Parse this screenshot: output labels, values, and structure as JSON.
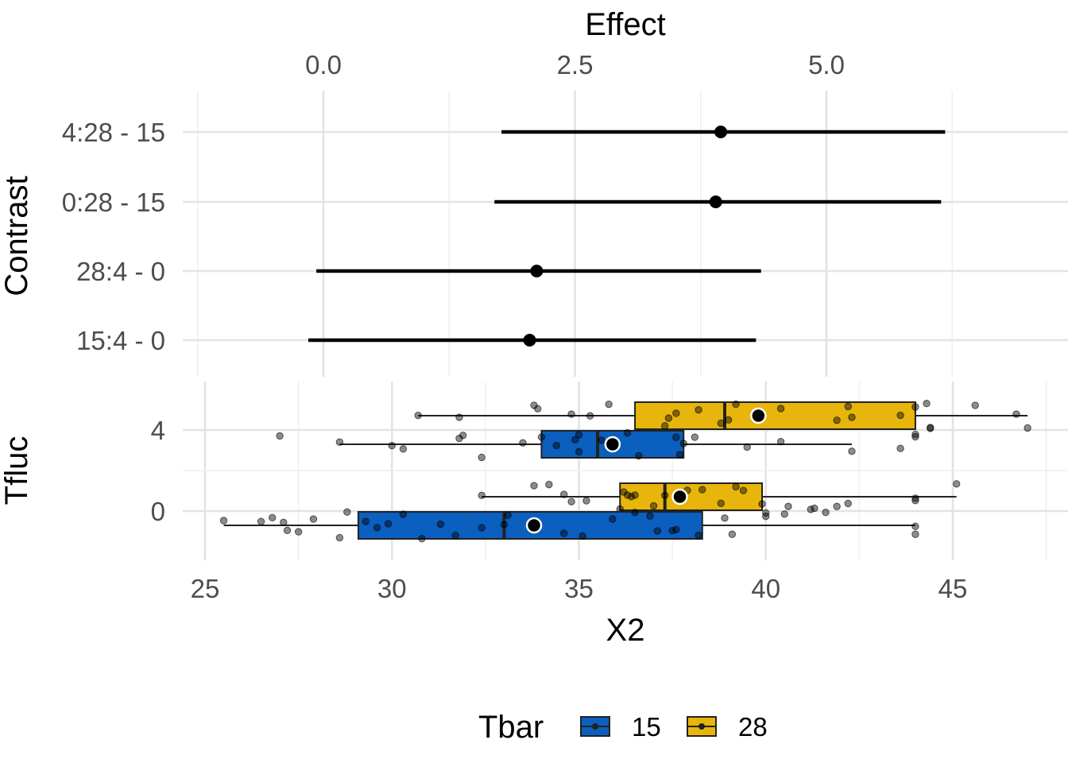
{
  "chart_data": [
    {
      "type": "forest",
      "title": "",
      "top_axis_title": "Effect",
      "y_axis_title": "Contrast",
      "x_ticks": [
        "0.0",
        "2.5",
        "5.0"
      ],
      "x_tick_values": [
        0,
        2.5,
        5
      ],
      "xlim": [
        -1.25,
        7.5
      ],
      "grid": true,
      "rows": [
        {
          "label": "4:28 - 15",
          "estimate": 3.95,
          "lower": 1.77,
          "upper": 6.18
        },
        {
          "label": "0:28 - 15",
          "estimate": 3.9,
          "lower": 1.7,
          "upper": 6.14
        },
        {
          "label": "28:4 - 0",
          "estimate": 2.12,
          "lower": -0.07,
          "upper": 4.35
        },
        {
          "label": "15:4 - 0",
          "estimate": 2.05,
          "lower": -0.15,
          "upper": 4.3
        }
      ]
    },
    {
      "type": "boxplot",
      "title": "",
      "x_axis_title": "X2",
      "y_axis_title": "Tfluc",
      "x_ticks": [
        "25",
        "30",
        "35",
        "40",
        "45"
      ],
      "x_tick_values": [
        25,
        30,
        35,
        40,
        45
      ],
      "y_ticks": [
        "4",
        "0"
      ],
      "xlim": [
        24.7,
        47.7
      ],
      "orientation": "horizontal",
      "grid": true,
      "legend": {
        "title": "Tbar",
        "position": "bottom",
        "entries": [
          "15",
          "28"
        ]
      },
      "colors": {
        "15": "#0b5fbf",
        "28": "#e8b50c"
      },
      "groups": [
        {
          "tfluc": "4",
          "tbar": "28",
          "whisker_low": 30.7,
          "q1": 36.5,
          "median": 38.9,
          "q3": 44.0,
          "whisker_high": 47.0,
          "mean": 39.8,
          "points": [
            30.7,
            31.8,
            33.8,
            33.9,
            34.8,
            35.3,
            35.8,
            37.3,
            37.4,
            37.6,
            38.2,
            38.8,
            39.0,
            39.2,
            39.9,
            40.4,
            41.9,
            42.2,
            42.3,
            43.6,
            44.0,
            44.3,
            44.4,
            44.4,
            45.6,
            46.7,
            47.0
          ]
        },
        {
          "tfluc": "4",
          "tbar": "15",
          "whisker_low": 28.6,
          "q1": 34.0,
          "median": 35.5,
          "q3": 37.8,
          "whisker_high": 42.3,
          "mean": 35.9,
          "points": [
            27.0,
            28.6,
            30.0,
            30.3,
            31.8,
            31.9,
            32.4,
            33.5,
            34.0,
            34.4,
            34.9,
            35.0,
            35.0,
            35.6,
            35.9,
            36.3,
            36.6,
            37.6,
            37.7,
            37.8,
            38.1,
            39.5,
            40.4,
            42.3,
            43.6,
            44.0,
            44.0
          ]
        },
        {
          "tfluc": "0",
          "tbar": "28",
          "whisker_low": 32.4,
          "q1": 36.1,
          "median": 37.3,
          "q3": 39.9,
          "whisker_high": 45.1,
          "mean": 37.7,
          "points": [
            32.4,
            33.8,
            34.2,
            34.6,
            34.8,
            35.2,
            36.1,
            36.2,
            36.3,
            36.4,
            36.5,
            37.0,
            37.3,
            37.6,
            37.9,
            38.3,
            38.8,
            39.2,
            39.4,
            39.9,
            40.6,
            41.2,
            41.3,
            41.9,
            42.2,
            44.0,
            44.0,
            45.1
          ]
        },
        {
          "tfluc": "0",
          "tbar": "15",
          "whisker_low": 25.5,
          "q1": 29.1,
          "median": 33.0,
          "q3": 38.3,
          "whisker_high": 44.0,
          "mean": 33.8,
          "points": [
            25.5,
            26.5,
            26.8,
            27.1,
            27.2,
            27.5,
            27.9,
            28.6,
            28.8,
            29.3,
            29.6,
            29.9,
            30.3,
            30.8,
            31.3,
            31.7,
            32.4,
            33.0,
            33.1,
            34.6,
            35.1,
            35.9,
            36.5,
            36.9,
            37.1,
            37.5,
            37.6,
            38.2,
            38.9,
            39.1,
            40.0,
            40.0,
            40.5,
            41.6,
            44.0,
            44.0
          ]
        }
      ]
    }
  ]
}
